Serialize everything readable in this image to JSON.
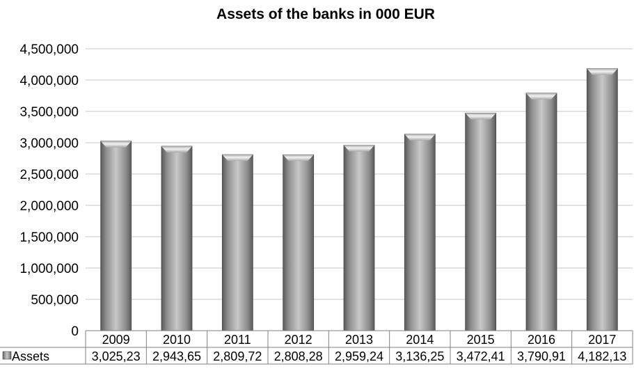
{
  "chart_data": {
    "type": "bar",
    "title": "Assets of the banks in 000 EUR",
    "categories": [
      "2009",
      "2010",
      "2011",
      "2012",
      "2013",
      "2014",
      "2015",
      "2016",
      "2017"
    ],
    "series": [
      {
        "name": "Assets",
        "values": [
          3025230,
          2943650,
          2809720,
          2808280,
          2959240,
          3136250,
          3472410,
          3790910,
          4182130
        ],
        "table_labels": [
          "3,025,23",
          "2,943,65",
          "2,809,72",
          "2,808,28",
          "2,959,24",
          "3,136,25",
          "3,472,41",
          "3,790,91",
          "4,182,13"
        ]
      }
    ],
    "ylim": [
      0,
      4500000
    ],
    "yticks": [
      "0",
      "500,000",
      "1,000,000",
      "1,500,000",
      "2,000,000",
      "2,500,000",
      "3,000,000",
      "3,500,000",
      "4,000,000",
      "4,500,000"
    ],
    "grid": true,
    "legend": "data-table-left",
    "colors": {
      "bar": "#9a9a9a",
      "grid": "#d9d9d9",
      "axis": "#808080"
    }
  }
}
